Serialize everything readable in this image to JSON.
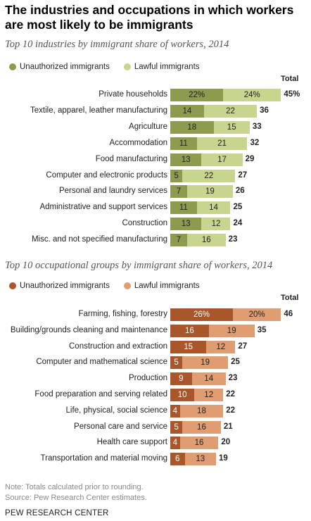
{
  "title": "The industries and occupations in which workers are most likely to be immigrants",
  "colors": {
    "industry_unauthorized": "#8d9b4f",
    "industry_lawful": "#c8d58f",
    "occupation_unauthorized": "#a9562a",
    "occupation_lawful": "#e09d72"
  },
  "total_label": "Total",
  "chart_data": [
    {
      "type": "bar",
      "stacked": true,
      "orientation": "horizontal",
      "title": "Top 10 industries by immigrant share of workers, 2014",
      "legend_placement": "top-left",
      "categories": [
        "Private households",
        "Textile, apparel, leather manufacturing",
        "Agriculture",
        "Accommodation",
        "Food manufacturing",
        "Computer and electronic products",
        "Personal and laundry services",
        "Administrative and support services",
        "Construction",
        "Misc. and not specified manufacturing"
      ],
      "series": [
        {
          "name": "Unauthorized immigrants",
          "values": [
            22,
            14,
            18,
            11,
            13,
            5,
            7,
            11,
            13,
            7
          ],
          "labels": [
            "22%",
            "14",
            "18",
            "11",
            "13",
            "5",
            "7",
            "11",
            "13",
            "7"
          ]
        },
        {
          "name": "Lawful immigrants",
          "values": [
            24,
            22,
            15,
            21,
            17,
            22,
            19,
            14,
            12,
            16
          ],
          "labels": [
            "24%",
            "22",
            "15",
            "21",
            "17",
            "22",
            "19",
            "14",
            "12",
            "16"
          ]
        }
      ],
      "totals": [
        "45%",
        "36",
        "33",
        "32",
        "29",
        "27",
        "26",
        "25",
        "24",
        "23"
      ]
    },
    {
      "type": "bar",
      "stacked": true,
      "orientation": "horizontal",
      "title": "Top 10 occupational groups by immigrant share of workers, 2014",
      "legend_placement": "top-left",
      "categories": [
        "Farming, fishing, forestry",
        "Building/grounds cleaning and maintenance",
        "Construction and extraction",
        "Computer and mathematical science",
        "Production",
        "Food preparation and serving related",
        "Life, physical, social science",
        "Personal care and service",
        "Health care support",
        "Transportation and material moving"
      ],
      "series": [
        {
          "name": "Unauthorized immigrants",
          "values": [
            26,
            16,
            15,
            5,
            9,
            10,
            4,
            5,
            4,
            6
          ],
          "labels": [
            "26%",
            "16",
            "15",
            "5",
            "9",
            "10",
            "4",
            "5",
            "4",
            "6"
          ]
        },
        {
          "name": "Lawful immigrants",
          "values": [
            20,
            19,
            12,
            19,
            14,
            12,
            18,
            16,
            16,
            13
          ],
          "labels": [
            "20%",
            "19",
            "12",
            "19",
            "14",
            "12",
            "18",
            "16",
            "16",
            "13"
          ]
        }
      ],
      "totals": [
        "46",
        "35",
        "27",
        "25",
        "23",
        "22",
        "22",
        "21",
        "20",
        "19"
      ]
    }
  ],
  "notes": [
    "Note: Totals calculated prior to rounding.",
    "Source: Pew Research Center estimates."
  ],
  "footer": "PEW RESEARCH CENTER"
}
